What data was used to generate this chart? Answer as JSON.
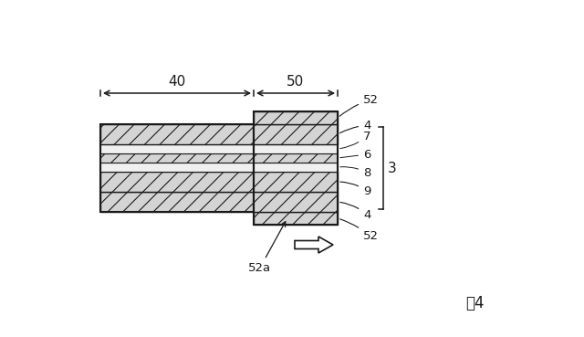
{
  "fig_width": 6.4,
  "fig_height": 3.69,
  "bg_color": "#ffffff",
  "line_color": "#1a1a1a",
  "title_label": "围4",
  "dim_label_40": "40",
  "dim_label_50": "50",
  "labels": {
    "52_top": "52",
    "4_top": "4",
    "7": "7",
    "6": "6",
    "8": "8",
    "9": "9",
    "4_bot": "4",
    "52_bot": "52",
    "52a": "52a",
    "3": "3"
  },
  "hatch_color": "#404040",
  "layer_face": "#d4d4d4",
  "cap_face": "#d4d4d4",
  "thin_face": "#f0f0f0"
}
